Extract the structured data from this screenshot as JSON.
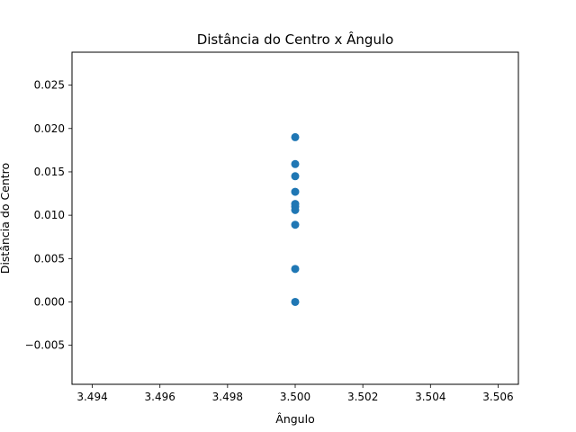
{
  "chart_data": {
    "type": "scatter",
    "title": "Distância do Centro x Ângulo",
    "xlabel": "Ângulo",
    "ylabel": "Distância do Centro",
    "xlim": [
      3.4934,
      3.5066
    ],
    "ylim": [
      -0.0095,
      0.0288
    ],
    "xticks": [
      3.494,
      3.496,
      3.498,
      3.5,
      3.502,
      3.504,
      3.506
    ],
    "xtick_labels": [
      "3.494",
      "3.496",
      "3.498",
      "3.500",
      "3.502",
      "3.504",
      "3.506"
    ],
    "yticks": [
      -0.005,
      0.0,
      0.005,
      0.01,
      0.015,
      0.02,
      0.025
    ],
    "ytick_labels": [
      "−0.005",
      "0.000",
      "0.005",
      "0.010",
      "0.015",
      "0.020",
      "0.025"
    ],
    "grid": false,
    "marker_color": "#1f77b4",
    "points": [
      {
        "x": 3.5,
        "y": 0.019
      },
      {
        "x": 3.5,
        "y": 0.0159
      },
      {
        "x": 3.5,
        "y": 0.0145
      },
      {
        "x": 3.5,
        "y": 0.0127
      },
      {
        "x": 3.5,
        "y": 0.0113
      },
      {
        "x": 3.5,
        "y": 0.011
      },
      {
        "x": 3.5,
        "y": 0.0106
      },
      {
        "x": 3.5,
        "y": 0.0089
      },
      {
        "x": 3.5,
        "y": 0.0038
      },
      {
        "x": 3.5,
        "y": 0.0
      }
    ]
  }
}
